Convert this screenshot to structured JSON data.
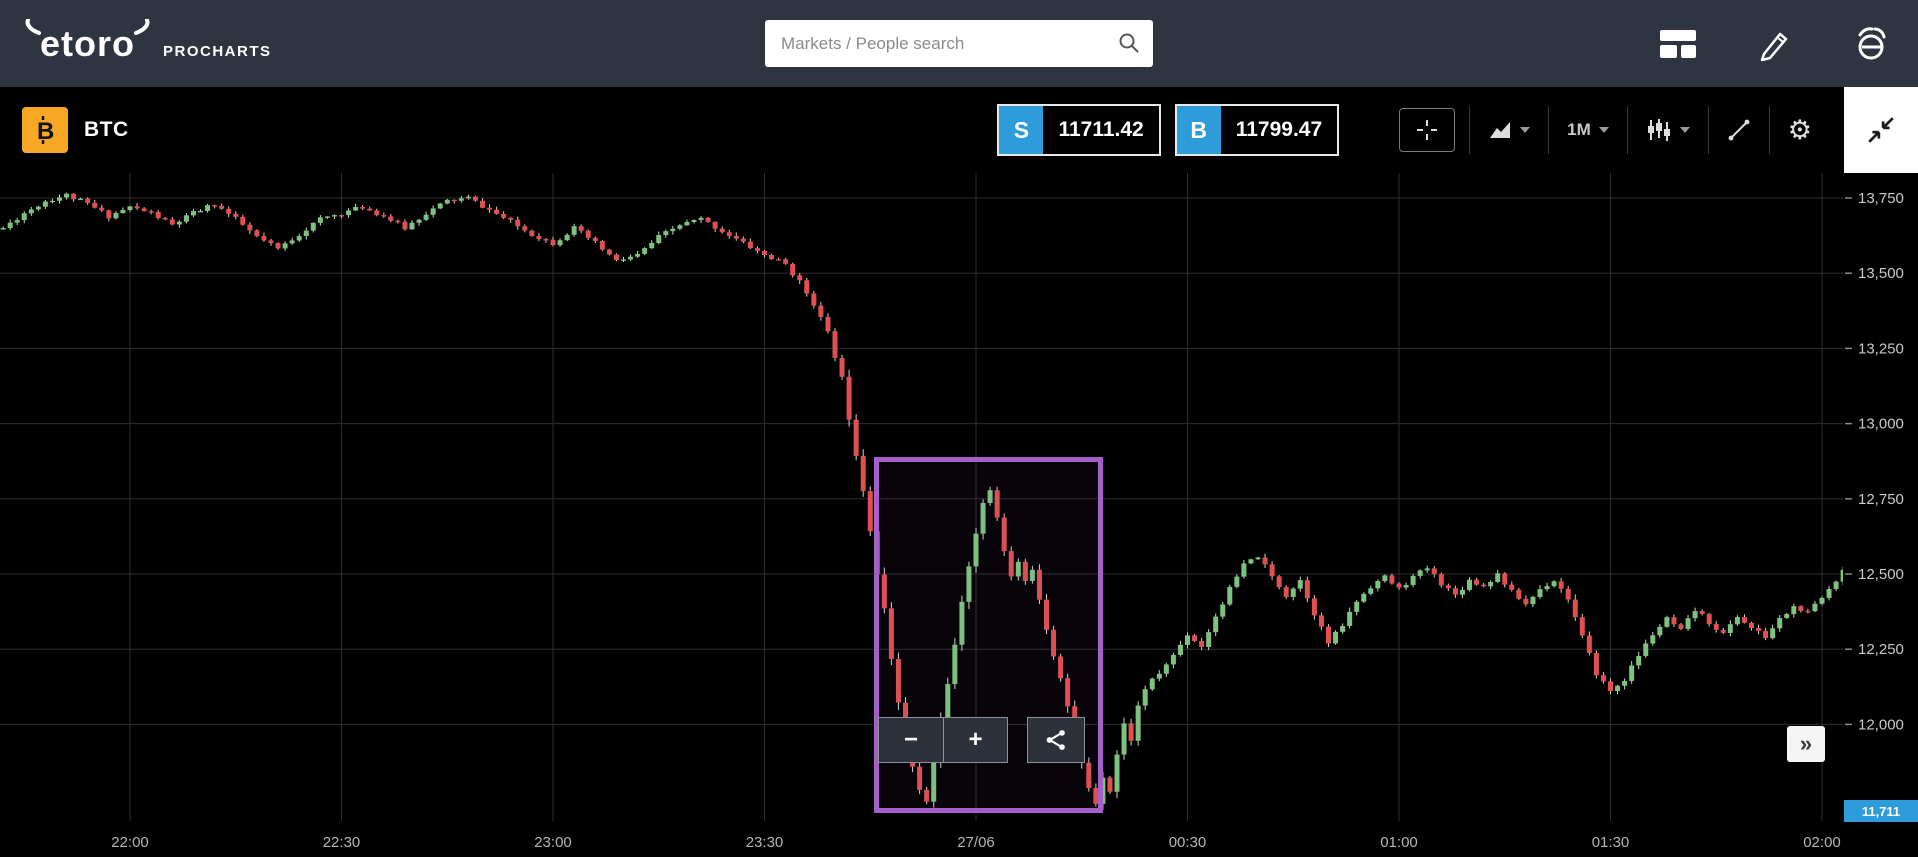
{
  "header": {
    "logo_text": "etoro",
    "logo_sub": "PROCHARTS",
    "search_placeholder": "Markets / People search"
  },
  "toolbar": {
    "symbol": "BTC",
    "sell_label": "S",
    "sell_price": "11711.42",
    "buy_label": "B",
    "buy_price": "11799.47",
    "interval": "1M"
  },
  "chart_controls": {
    "zoom_out": "−",
    "zoom_in": "+",
    "expand": "»"
  },
  "chart_data": {
    "type": "candlestick",
    "symbol": "BTC",
    "interval": "1M",
    "x_ticks": [
      {
        "label": "22:00",
        "t": 0
      },
      {
        "label": "22:30",
        "t": 30
      },
      {
        "label": "23:00",
        "t": 60
      },
      {
        "label": "23:30",
        "t": 90
      },
      {
        "label": "27/06",
        "t": 120
      },
      {
        "label": "00:30",
        "t": 150
      },
      {
        "label": "01:00",
        "t": 180
      },
      {
        "label": "01:30",
        "t": 210
      },
      {
        "label": "02:00",
        "t": 240
      }
    ],
    "y_ticks": [
      13750,
      13500,
      13250,
      13000,
      12750,
      12500,
      12250,
      12000
    ],
    "time_range": [
      -18,
      243
    ],
    "price_range": [
      11690,
      13835
    ],
    "last_price_label": "11,711",
    "last_price_value": 11711.42,
    "selection_box": {
      "t_start": 105.5,
      "t_end": 138,
      "price_top": 12890,
      "price_bottom": 11705
    },
    "colors": {
      "up": "#7cc47e",
      "down": "#e14f4f",
      "wick": "#d4d4d4",
      "grid": "#2e2e2e",
      "axis_text": "#c9c9c9",
      "xaxis_text": "#b5b5b5",
      "tag": "#2e9cdb"
    },
    "waypoints": [
      [
        -18,
        13650
      ],
      [
        -15,
        13700
      ],
      [
        -12,
        13740
      ],
      [
        -9,
        13760
      ],
      [
        -6,
        13730
      ],
      [
        -3,
        13690
      ],
      [
        0,
        13720
      ],
      [
        3,
        13700
      ],
      [
        6,
        13660
      ],
      [
        9,
        13700
      ],
      [
        12,
        13730
      ],
      [
        15,
        13680
      ],
      [
        18,
        13620
      ],
      [
        21,
        13580
      ],
      [
        24,
        13630
      ],
      [
        27,
        13680
      ],
      [
        30,
        13700
      ],
      [
        33,
        13720
      ],
      [
        36,
        13690
      ],
      [
        39,
        13650
      ],
      [
        42,
        13700
      ],
      [
        45,
        13740
      ],
      [
        48,
        13750
      ],
      [
        51,
        13710
      ],
      [
        54,
        13670
      ],
      [
        57,
        13630
      ],
      [
        60,
        13600
      ],
      [
        63,
        13650
      ],
      [
        66,
        13600
      ],
      [
        69,
        13540
      ],
      [
        72,
        13560
      ],
      [
        75,
        13620
      ],
      [
        78,
        13660
      ],
      [
        81,
        13680
      ],
      [
        84,
        13640
      ],
      [
        87,
        13600
      ],
      [
        90,
        13560
      ],
      [
        93,
        13530
      ],
      [
        95,
        13470
      ],
      [
        97,
        13400
      ],
      [
        99,
        13300
      ],
      [
        101,
        13150
      ],
      [
        102,
        13020
      ],
      [
        103,
        12900
      ],
      [
        104,
        12780
      ],
      [
        105,
        12650
      ],
      [
        106,
        12500
      ],
      [
        107,
        12380
      ],
      [
        108,
        12220
      ],
      [
        109,
        12080
      ],
      [
        110,
        11960
      ],
      [
        111,
        11860
      ],
      [
        112,
        11780
      ],
      [
        113,
        11740
      ],
      [
        114,
        11880
      ],
      [
        115,
        12020
      ],
      [
        116,
        12140
      ],
      [
        117,
        12260
      ],
      [
        118,
        12400
      ],
      [
        119,
        12530
      ],
      [
        120,
        12640
      ],
      [
        121,
        12730
      ],
      [
        122,
        12780
      ],
      [
        123,
        12690
      ],
      [
        124,
        12580
      ],
      [
        125,
        12490
      ],
      [
        126,
        12540
      ],
      [
        127,
        12470
      ],
      [
        128,
        12520
      ],
      [
        129,
        12420
      ],
      [
        130,
        12320
      ],
      [
        131,
        12230
      ],
      [
        132,
        12160
      ],
      [
        133,
        12060
      ],
      [
        134,
        11960
      ],
      [
        135,
        11870
      ],
      [
        136,
        11790
      ],
      [
        137,
        11740
      ],
      [
        138,
        11830
      ],
      [
        139,
        11780
      ],
      [
        140,
        11900
      ],
      [
        141,
        12000
      ],
      [
        142,
        11950
      ],
      [
        143,
        12060
      ],
      [
        144,
        12120
      ],
      [
        146,
        12170
      ],
      [
        148,
        12230
      ],
      [
        150,
        12300
      ],
      [
        152,
        12260
      ],
      [
        154,
        12360
      ],
      [
        156,
        12450
      ],
      [
        158,
        12530
      ],
      [
        160,
        12560
      ],
      [
        162,
        12490
      ],
      [
        164,
        12430
      ],
      [
        166,
        12480
      ],
      [
        168,
        12370
      ],
      [
        170,
        12270
      ],
      [
        172,
        12330
      ],
      [
        174,
        12410
      ],
      [
        176,
        12460
      ],
      [
        178,
        12490
      ],
      [
        180,
        12450
      ],
      [
        182,
        12490
      ],
      [
        184,
        12520
      ],
      [
        186,
        12470
      ],
      [
        188,
        12430
      ],
      [
        190,
        12480
      ],
      [
        192,
        12460
      ],
      [
        194,
        12500
      ],
      [
        196,
        12440
      ],
      [
        198,
        12400
      ],
      [
        200,
        12450
      ],
      [
        202,
        12480
      ],
      [
        204,
        12420
      ],
      [
        206,
        12290
      ],
      [
        208,
        12170
      ],
      [
        210,
        12110
      ],
      [
        212,
        12150
      ],
      [
        214,
        12230
      ],
      [
        216,
        12300
      ],
      [
        218,
        12350
      ],
      [
        220,
        12310
      ],
      [
        222,
        12380
      ],
      [
        224,
        12340
      ],
      [
        226,
        12300
      ],
      [
        228,
        12360
      ],
      [
        230,
        12320
      ],
      [
        232,
        12290
      ],
      [
        234,
        12350
      ],
      [
        236,
        12390
      ],
      [
        238,
        12370
      ],
      [
        240,
        12420
      ],
      [
        242,
        12480
      ],
      [
        243,
        12520
      ]
    ]
  }
}
